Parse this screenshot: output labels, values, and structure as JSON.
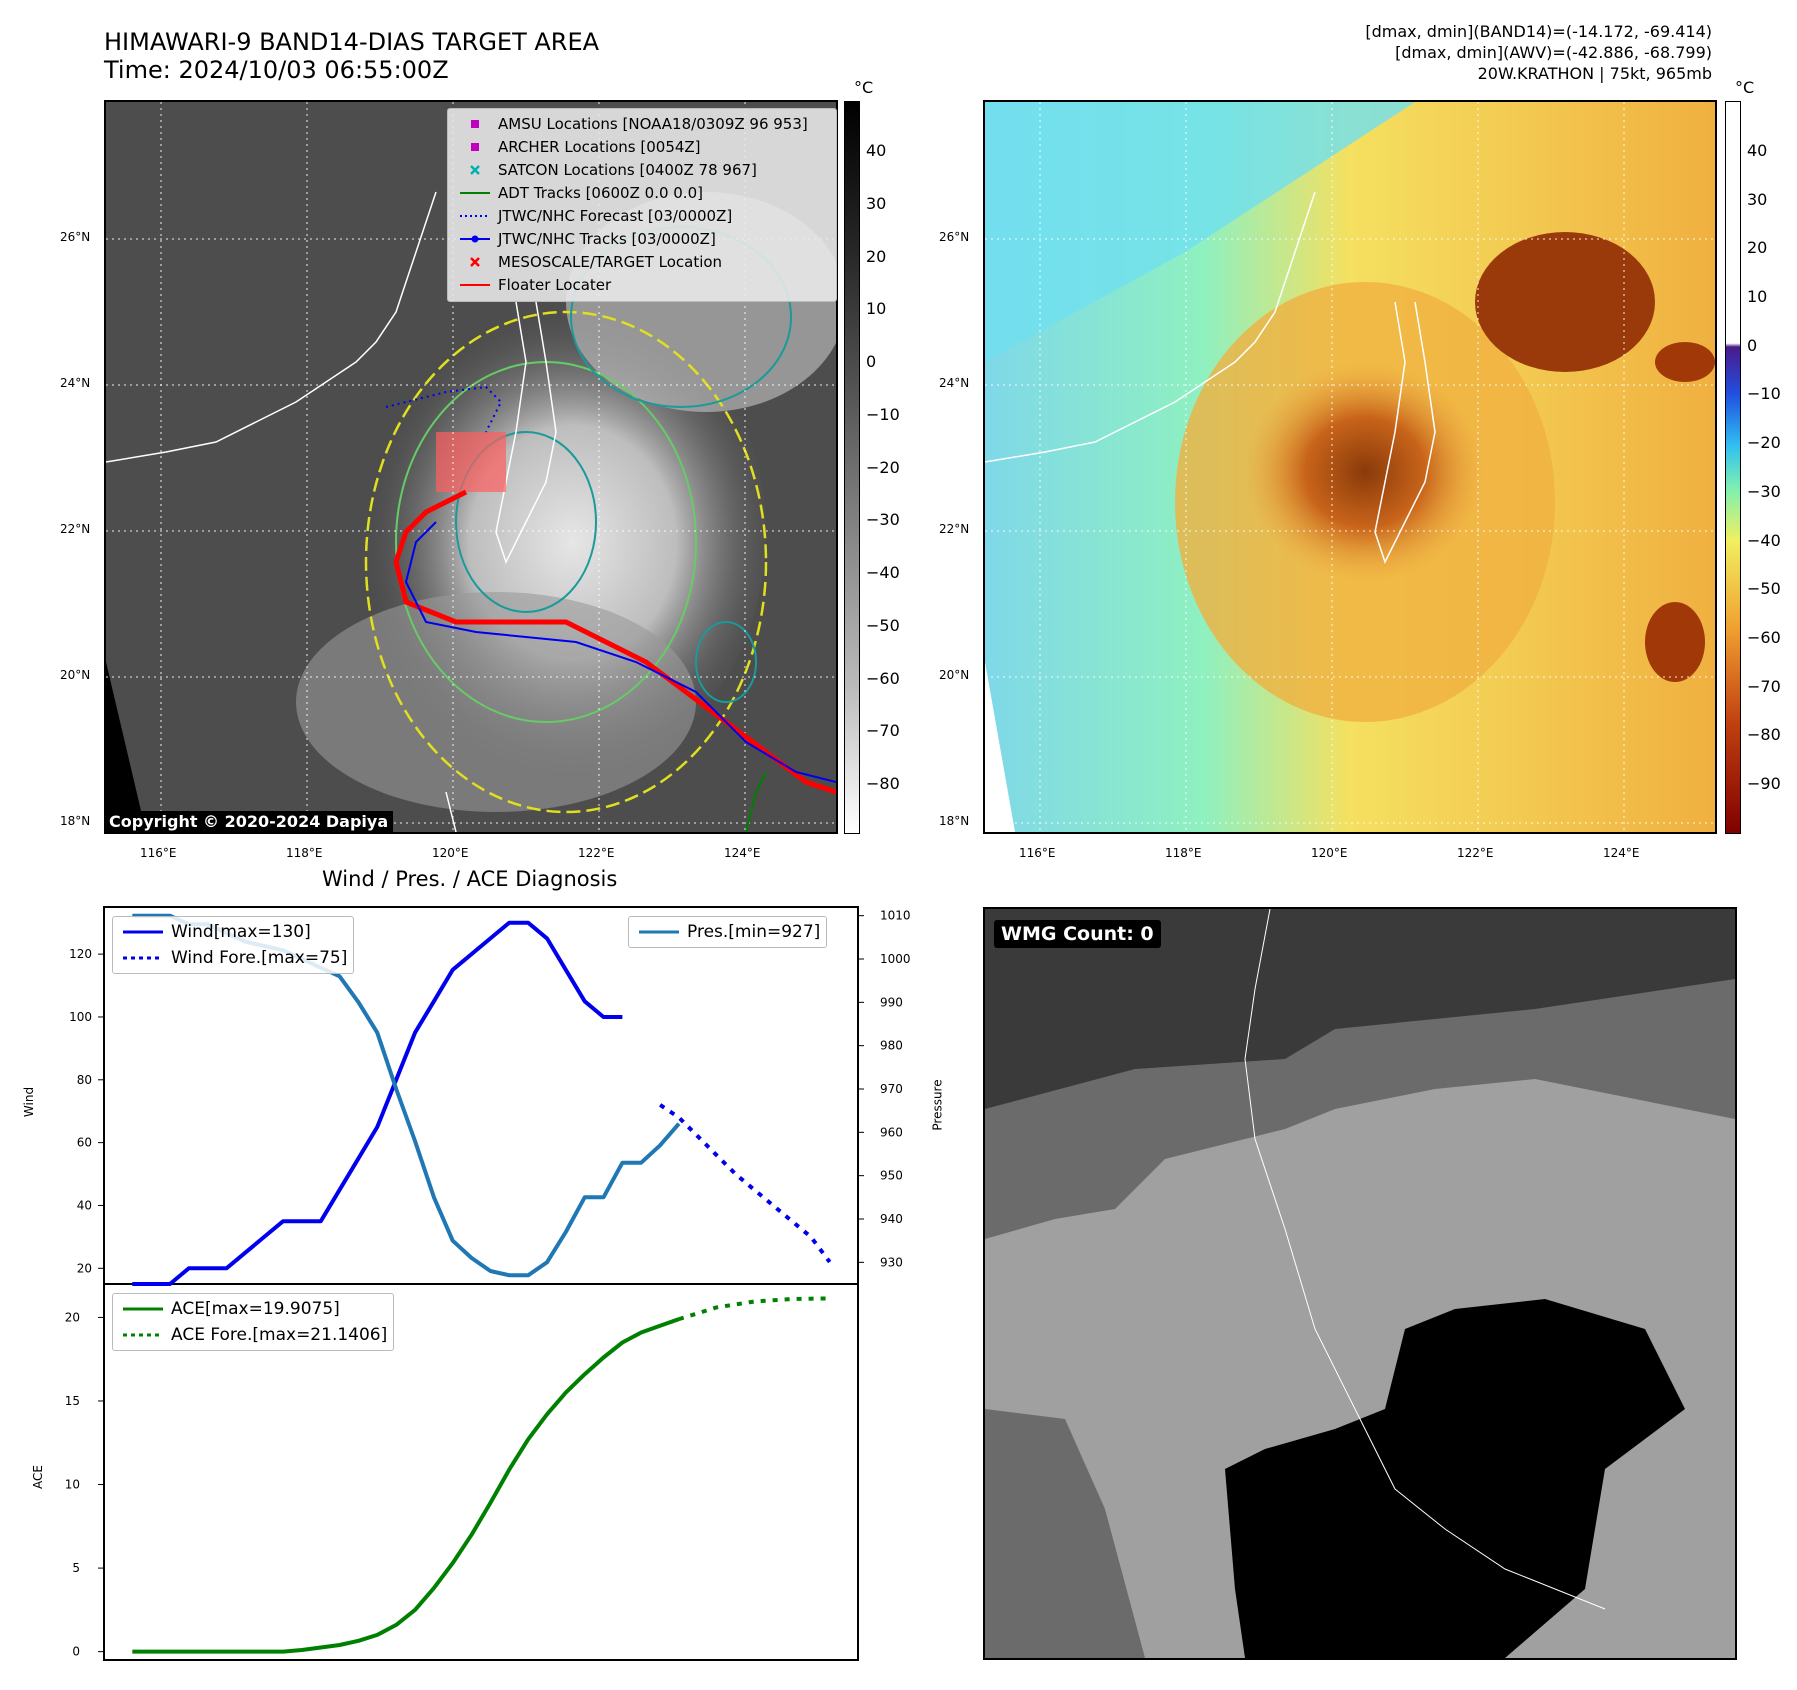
{
  "header": {
    "title_line1": "HIMAWARI-9 BAND14-DIAS TARGET AREA",
    "title_line2": "Time: 2024/10/03 06:55:00Z",
    "info_line1": "[dmax, dmin](BAND14)=(-14.172, -69.414)",
    "info_line2": "[dmax, dmin](AWV)=(-42.886, -68.799)",
    "info_line3": "20W.KRATHON | 75kt, 965mb"
  },
  "map": {
    "lat_labels": [
      "26°N",
      "24°N",
      "22°N",
      "20°N",
      "18°N"
    ],
    "lon_labels": [
      "116°E",
      "118°E",
      "120°E",
      "122°E",
      "124°E"
    ],
    "copyright": "Copyright © 2020-2024 Dapiya"
  },
  "colorbar_left": {
    "unit": "°C",
    "ticks": [
      "40",
      "30",
      "20",
      "10",
      "0",
      "−10",
      "−20",
      "−30",
      "−40",
      "−50",
      "−60",
      "−70",
      "−80"
    ]
  },
  "colorbar_right": {
    "unit": "°C",
    "ticks": [
      "40",
      "30",
      "20",
      "10",
      "0",
      "−10",
      "−20",
      "−30",
      "−40",
      "−50",
      "−60",
      "−70",
      "−80",
      "−90"
    ]
  },
  "legend": {
    "items": [
      {
        "label": "AMSU Locations [NOAA18/0309Z 96 953]",
        "symbol": "square",
        "color": "#c000c0"
      },
      {
        "label": "ARCHER Locations [0054Z]",
        "symbol": "square",
        "color": "#c000c0"
      },
      {
        "label": "SATCON Locations [0400Z 78 967]",
        "symbol": "x",
        "color": "#00b0b0"
      },
      {
        "label": "ADT Tracks [0600Z 0.0 0.0]",
        "symbol": "line",
        "color": "#008000"
      },
      {
        "label": "JTWC/NHC Forecast [03/0000Z]",
        "symbol": "dotted",
        "color": "#0000ff"
      },
      {
        "label": "JTWC/NHC Tracks [03/0000Z]",
        "symbol": "line-dot",
        "color": "#0000ff"
      },
      {
        "label": "MESOSCALE/TARGET Location",
        "symbol": "x",
        "color": "#ff0000"
      },
      {
        "label": "Floater Locater",
        "symbol": "line",
        "color": "#ff0000"
      }
    ]
  },
  "wmg": {
    "label": "WMG Count: 0"
  },
  "chart_data": [
    {
      "type": "line",
      "title": "Wind / Pres. / ACE Diagnosis",
      "ylabel": "Wind",
      "ylabel_right": "Pressure",
      "x": [
        0,
        1,
        2,
        3,
        4,
        5,
        6,
        7,
        8,
        9,
        10,
        11,
        12,
        13,
        14,
        15,
        16,
        17,
        18,
        19,
        20,
        21,
        22,
        23,
        24,
        25,
        26,
        27,
        28,
        29,
        30,
        31,
        32,
        33,
        34,
        35,
        36,
        37
      ],
      "ylim": [
        15,
        135
      ],
      "ylim_right": [
        925,
        1012
      ],
      "yticks": [
        20,
        40,
        60,
        80,
        100,
        120
      ],
      "yticks_right": [
        930,
        940,
        950,
        960,
        970,
        980,
        990,
        1000,
        1010
      ],
      "series": [
        {
          "name": "Wind[max=130]",
          "axis": "left",
          "color": "#0000ee",
          "style": "solid",
          "x": [
            0,
            1,
            2,
            3,
            4,
            5,
            6,
            7,
            8,
            9,
            10,
            11,
            12,
            13,
            14,
            15,
            16,
            17,
            18,
            19,
            20,
            21,
            22,
            23,
            24,
            25,
            26
          ],
          "values": [
            15,
            15,
            15,
            20,
            20,
            20,
            25,
            30,
            35,
            35,
            35,
            45,
            55,
            65,
            80,
            95,
            105,
            115,
            120,
            125,
            130,
            130,
            125,
            115,
            105,
            100,
            100
          ]
        },
        {
          "name": "Wind Fore.[max=75]",
          "axis": "left",
          "color": "#0000ee",
          "style": "dotted",
          "x": [
            28,
            29,
            30,
            31,
            32,
            33,
            34,
            35,
            36,
            37
          ],
          "values": [
            72,
            68,
            62,
            56,
            50,
            45,
            40,
            35,
            30,
            22
          ]
        },
        {
          "name": "Pres.[min=927]",
          "axis": "right",
          "color": "#1f77b4",
          "style": "solid",
          "x": [
            0,
            1,
            2,
            3,
            4,
            5,
            6,
            7,
            8,
            9,
            10,
            11,
            12,
            13,
            14,
            15,
            16,
            17,
            18,
            19,
            20,
            21,
            22,
            23,
            24,
            25,
            26,
            27,
            28,
            29
          ],
          "values": [
            1010,
            1010,
            1010,
            1008,
            1008,
            1006,
            1004,
            1003,
            1002,
            1000,
            998,
            996,
            990,
            983,
            970,
            958,
            945,
            935,
            931,
            928,
            927,
            927,
            930,
            937,
            945,
            945,
            953,
            953,
            957,
            962
          ]
        }
      ]
    },
    {
      "type": "line",
      "ylabel": "ACE",
      "ylim": [
        -0.5,
        22
      ],
      "yticks": [
        0,
        5,
        10,
        15,
        20
      ],
      "series": [
        {
          "name": "ACE[max=19.9075]",
          "color": "#008000",
          "style": "solid",
          "x": [
            0,
            2,
            4,
            6,
            8,
            9,
            10,
            11,
            12,
            13,
            14,
            15,
            16,
            17,
            18,
            19,
            20,
            21,
            22,
            23,
            24,
            25,
            26,
            27,
            28,
            29
          ],
          "values": [
            0,
            0,
            0,
            0,
            0,
            0.1,
            0.25,
            0.4,
            0.65,
            1.0,
            1.6,
            2.5,
            3.8,
            5.3,
            7.0,
            8.9,
            10.9,
            12.7,
            14.2,
            15.5,
            16.6,
            17.6,
            18.5,
            19.1,
            19.5,
            19.9
          ]
        },
        {
          "name": "ACE Fore.[max=21.1406]",
          "color": "#008000",
          "style": "dotted",
          "x": [
            29,
            31,
            33,
            35,
            37
          ],
          "values": [
            19.9,
            20.6,
            20.95,
            21.1,
            21.14
          ]
        }
      ]
    }
  ]
}
